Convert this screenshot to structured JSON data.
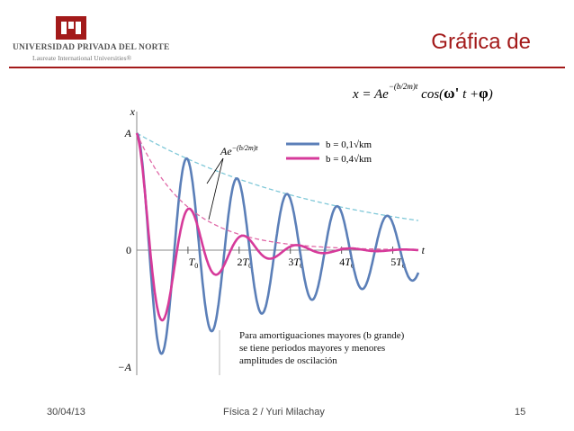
{
  "logo": {
    "name": "UNIVERSIDAD PRIVADA DEL NORTE",
    "subtitle": "Laureate International Universities®",
    "brand_color": "#a31a1a"
  },
  "slide": {
    "title": "Gráfica de",
    "formula": {
      "lhs": "x = Ae",
      "exponent": "−(b/2m)t",
      "rhs_a": "cos(",
      "omega": "ω'",
      "rhs_b": " t +",
      "phi": "φ",
      "rhs_c": ")"
    }
  },
  "footer": {
    "date": "30/04/13",
    "course": "Física 2 / Yuri Milachay",
    "page": "15"
  },
  "chart_data": {
    "type": "line",
    "title": "",
    "xlabel": "t",
    "ylabel": "x",
    "y_ticks": [
      "A",
      "0",
      "−A"
    ],
    "x_ticks": [
      {
        "pre": "",
        "base": "T",
        "sub": "0",
        "value": 1
      },
      {
        "pre": "2",
        "base": "T",
        "sub": "0",
        "value": 2
      },
      {
        "pre": "3",
        "base": "T",
        "sub": "0",
        "value": 3
      },
      {
        "pre": "4",
        "base": "T",
        "sub": "0",
        "value": 4
      },
      {
        "pre": "5",
        "base": "T",
        "sub": "0",
        "value": 5
      }
    ],
    "xlim": [
      0,
      5.5
    ],
    "ylim": [
      -1.05,
      1.05
    ],
    "grid": false,
    "legend_position": "top-right",
    "series": [
      {
        "name": "b = 0,1√km",
        "color": "#5b7fb8",
        "gamma": 0.25,
        "period": 0.98,
        "envelope_color": "#7fc8d8"
      },
      {
        "name": "b = 0,4√km",
        "color": "#d63a9a",
        "gamma": 1.0,
        "period": 1.05,
        "envelope_color": "#e06aa8"
      }
    ],
    "annotations": {
      "envelope_label": {
        "base": "Ae",
        "exp": "−(b/2m)t"
      },
      "note": [
        "Para amortiguaciones mayores (b grande)",
        "se tiene periodos mayores y menores",
        "amplitudes de oscilación"
      ]
    }
  }
}
